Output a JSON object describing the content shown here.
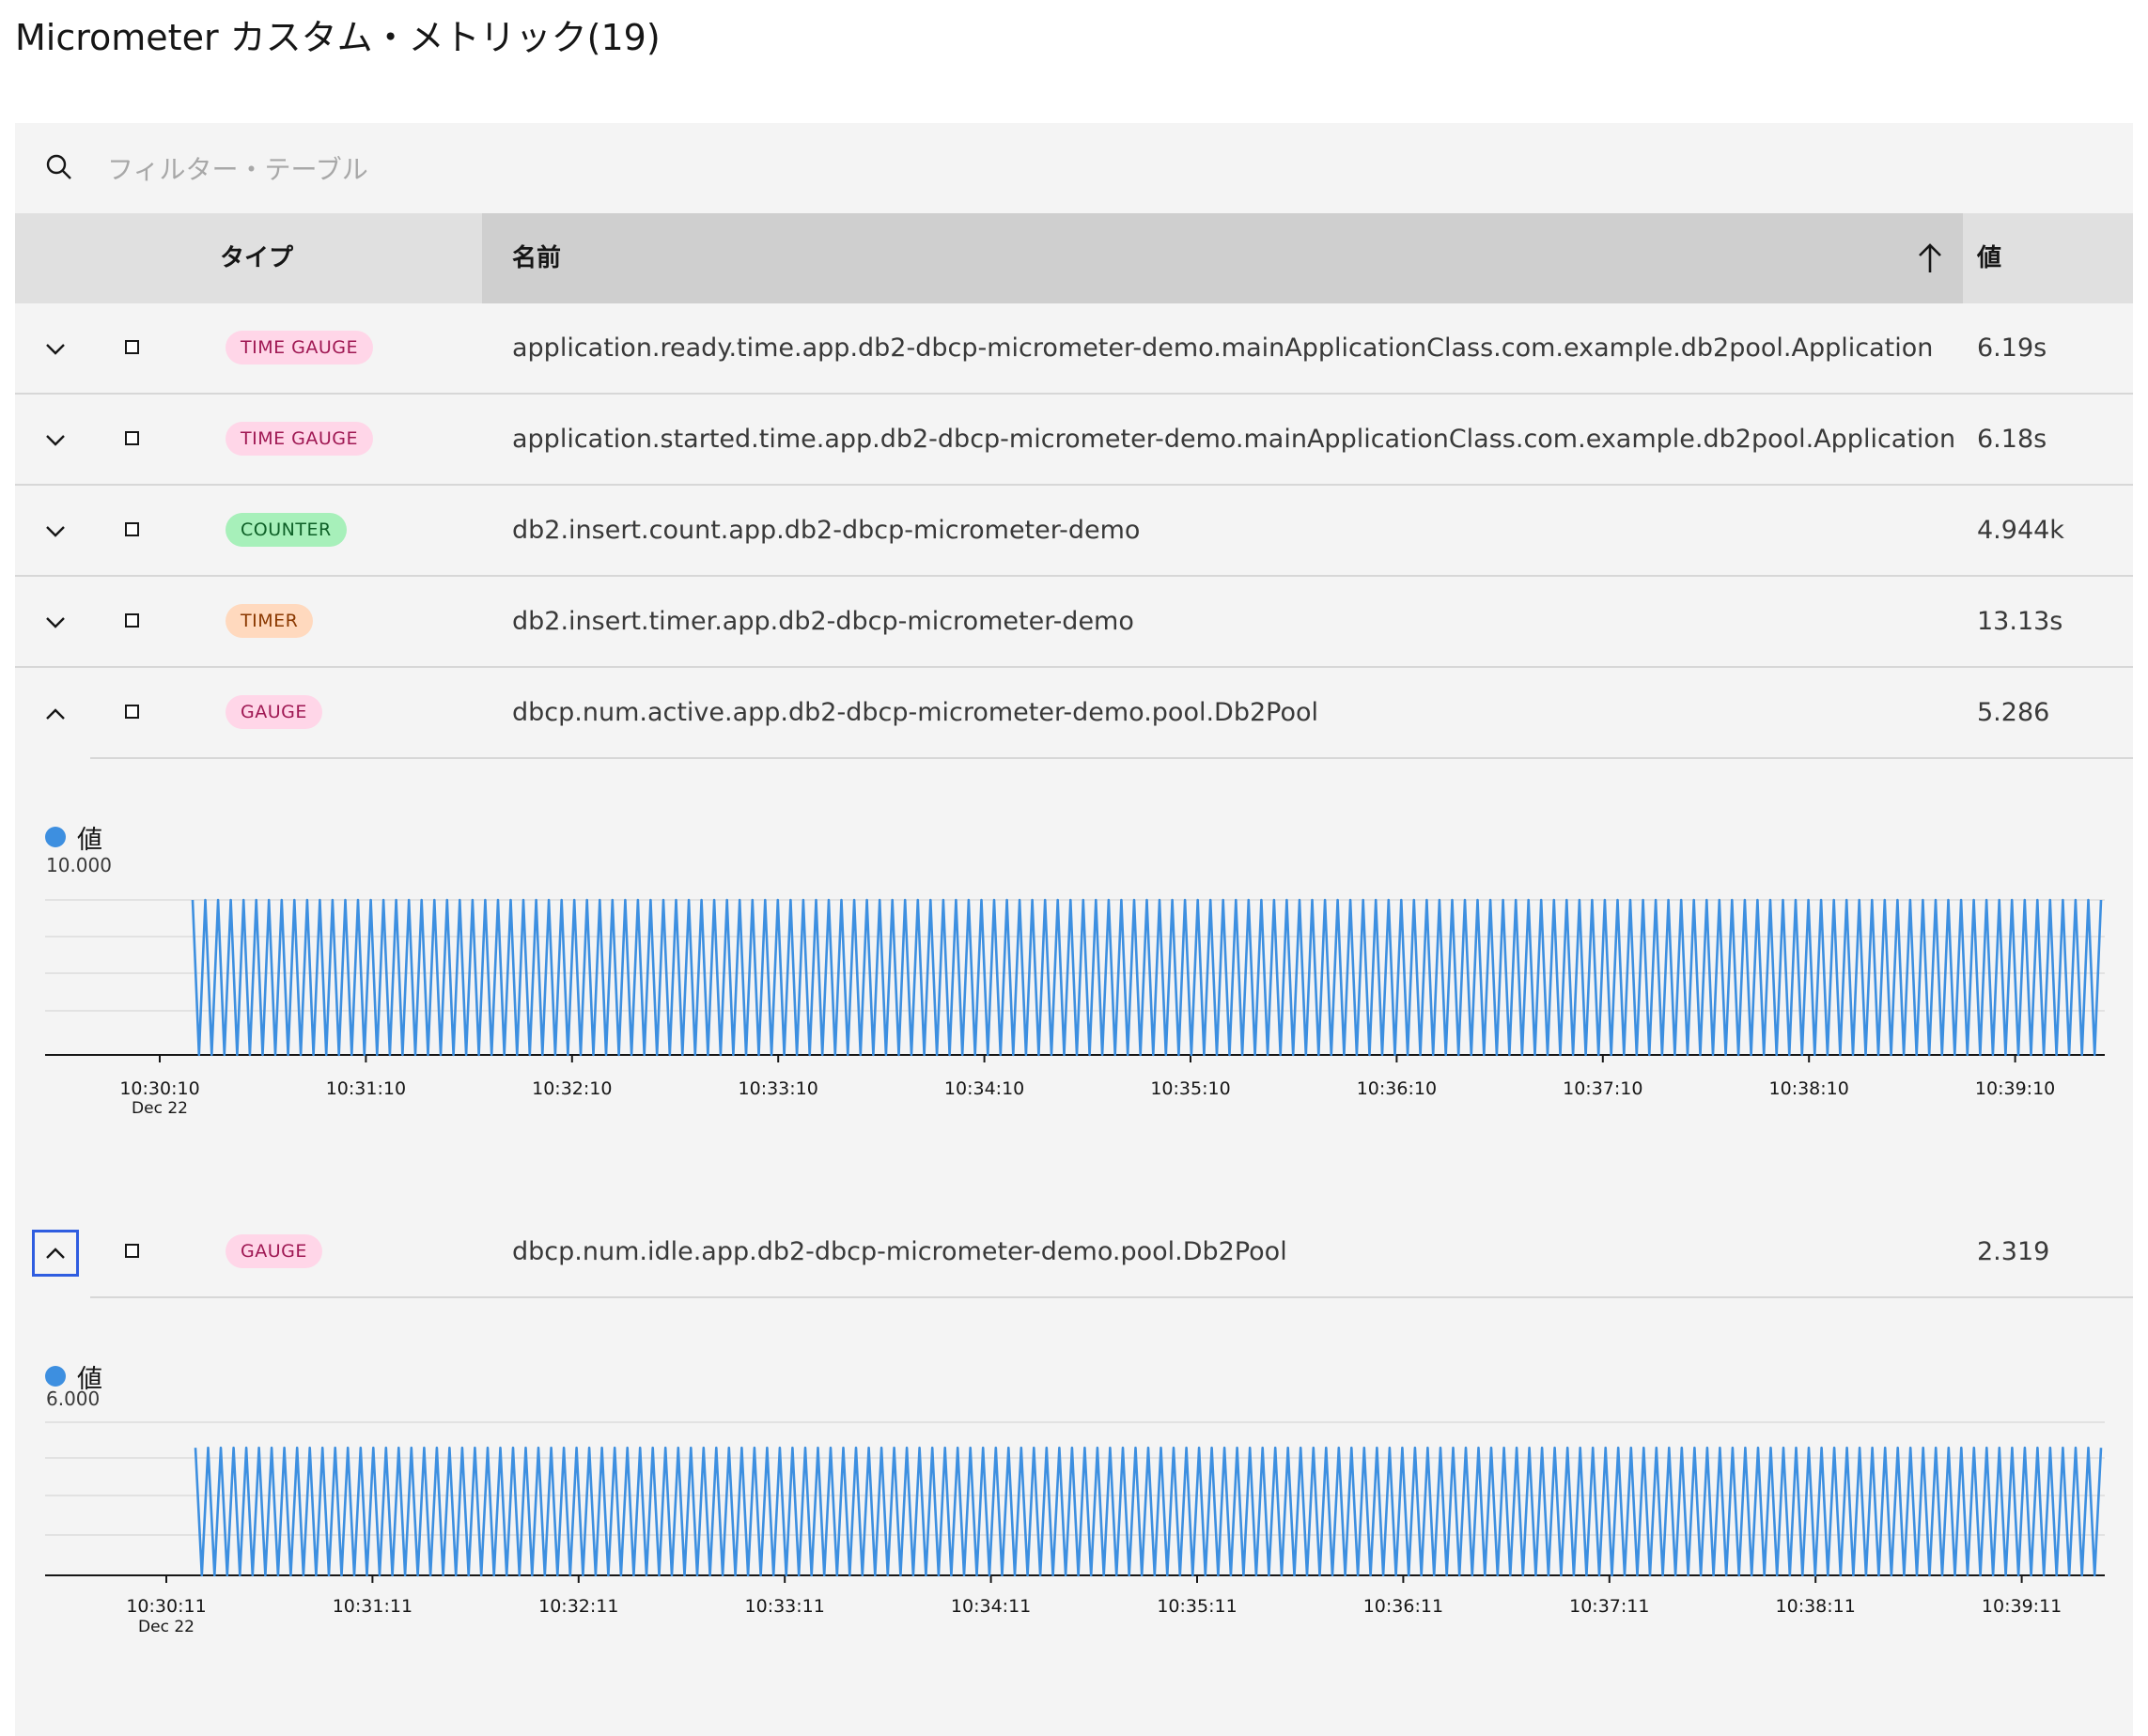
{
  "page": {
    "title": "Micrometer カスタム・メトリック(19)"
  },
  "search": {
    "placeholder": "フィルター・テーブル"
  },
  "table": {
    "headers": {
      "type": "タイプ",
      "name": "名前",
      "value": "値"
    },
    "rows": [
      {
        "type": "TIME GAUGE",
        "name": "application.ready.time.app.db2-dbcp-micrometer-demo.mainApplicationClass.com.example.db2pool.Application",
        "value": "6.19s"
      },
      {
        "type": "TIME GAUGE",
        "name": "application.started.time.app.db2-dbcp-micrometer-demo.mainApplicationClass.com.example.db2pool.Application",
        "value": "6.18s"
      },
      {
        "type": "COUNTER",
        "name": "db2.insert.count.app.db2-dbcp-micrometer-demo",
        "value": "4.944k"
      },
      {
        "type": "TIMER",
        "name": "db2.insert.timer.app.db2-dbcp-micrometer-demo",
        "value": "13.13s"
      },
      {
        "type": "GAUGE",
        "name": "dbcp.num.active.app.db2-dbcp-micrometer-demo.pool.Db2Pool",
        "value": "5.286"
      },
      {
        "type": "GAUGE",
        "name": "dbcp.num.idle.app.db2-dbcp-micrometer-demo.pool.Db2Pool",
        "value": "2.319"
      }
    ]
  },
  "colors": {
    "series": "#3d8fe0",
    "tag_pink_bg": "#ffd6e8",
    "tag_green_bg": "#a7f0ba",
    "tag_orange_bg": "#ffd9be"
  },
  "chart_data": [
    {
      "type": "line",
      "legend": [
        "値"
      ],
      "series": [
        {
          "name": "値",
          "pattern": "oscillating",
          "values_low": 0,
          "values_high": 10,
          "start": "10:30:24"
        }
      ],
      "ylim": [
        0,
        10
      ],
      "y_tick_label": "10.000",
      "x_ticks": [
        "10:30:10",
        "10:31:10",
        "10:32:10",
        "10:33:10",
        "10:34:10",
        "10:35:10",
        "10:36:10",
        "10:37:10",
        "10:38:10",
        "10:39:10"
      ],
      "x_sublabel": "Dec 22",
      "grid": true
    },
    {
      "type": "line",
      "legend": [
        "値"
      ],
      "series": [
        {
          "name": "値",
          "pattern": "oscillating",
          "values_low": 0,
          "values_high": 5,
          "start": "10:30:24"
        }
      ],
      "ylim": [
        0,
        6
      ],
      "y_tick_label": "6.000",
      "x_ticks": [
        "10:30:11",
        "10:31:11",
        "10:32:11",
        "10:33:11",
        "10:34:11",
        "10:35:11",
        "10:36:11",
        "10:37:11",
        "10:38:11",
        "10:39:11"
      ],
      "x_sublabel": "Dec 22",
      "grid": true
    }
  ]
}
